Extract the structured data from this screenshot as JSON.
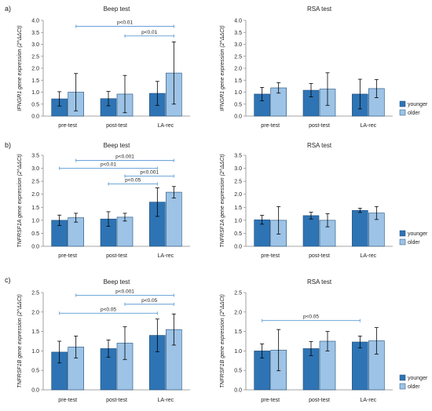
{
  "panel_labels": [
    "a)",
    "b)",
    "c)"
  ],
  "legend": {
    "younger": "younger",
    "older": "older"
  },
  "colors": {
    "younger": "#2e74b5",
    "older": "#9dc3e6",
    "annotation": "#5b9bd5",
    "error_bar": "#000000"
  },
  "chart_data": [
    {
      "type": "bar",
      "panel": "a)",
      "title": "Beep test",
      "ylabel": "IFNGR1 gene expression (2^ΔΔCt)",
      "ylim": [
        0,
        4
      ],
      "ticks": [
        "0.0",
        "0.5",
        "1.0",
        "1.5",
        "2.0",
        "2.5",
        "3.0",
        "3.5",
        "4.0"
      ],
      "categories": [
        "pre-test",
        "post-test",
        "LA-rec"
      ],
      "series": [
        {
          "name": "younger",
          "values": [
            0.72,
            0.73,
            0.95
          ],
          "errors": [
            0.3,
            0.3,
            0.5
          ]
        },
        {
          "name": "older",
          "values": [
            1.0,
            0.92,
            1.8
          ],
          "errors": [
            0.78,
            0.78,
            1.3
          ]
        }
      ],
      "annotations": [
        {
          "text": "p<0.01",
          "from": "pre-test.older",
          "to": "LA-rec.older",
          "y": 3.75
        },
        {
          "text": "p<0.01",
          "from": "post-test.older",
          "to": "LA-rec.older",
          "y": 3.35
        }
      ],
      "legend": false
    },
    {
      "type": "bar",
      "panel": "",
      "title": "RSA test",
      "ylabel": "IFNGR1 gene expression (2^ΔΔCt)",
      "ylim": [
        0,
        4
      ],
      "ticks": [
        "0.0",
        "0.5",
        "1.0",
        "1.5",
        "2.0",
        "2.5",
        "3.0",
        "3.5",
        "4.0"
      ],
      "categories": [
        "pre-test",
        "post-test",
        "LA-rec"
      ],
      "series": [
        {
          "name": "younger",
          "values": [
            0.92,
            1.08,
            0.92
          ],
          "errors": [
            0.28,
            0.28,
            0.62
          ]
        },
        {
          "name": "older",
          "values": [
            1.18,
            1.13,
            1.15
          ],
          "errors": [
            0.22,
            0.68,
            0.38
          ]
        }
      ],
      "annotations": [],
      "legend": true
    },
    {
      "type": "bar",
      "panel": "b)",
      "title": "Beep test",
      "ylabel": "TNFRSF1A gene expression (2^ΔΔCt)",
      "ylim": [
        0,
        3.5
      ],
      "ticks": [
        "0.0",
        "0.5",
        "1.0",
        "1.5",
        "2.0",
        "2.5",
        "3.0",
        "3.5"
      ],
      "categories": [
        "pre-test",
        "post-test",
        "LA-rec"
      ],
      "series": [
        {
          "name": "younger",
          "values": [
            1.0,
            1.05,
            1.7
          ],
          "errors": [
            0.2,
            0.28,
            0.55
          ]
        },
        {
          "name": "older",
          "values": [
            1.1,
            1.12,
            2.08
          ],
          "errors": [
            0.17,
            0.15,
            0.22
          ]
        }
      ],
      "annotations": [
        {
          "text": "p<0.001",
          "from": "pre-test.older",
          "to": "LA-rec.older",
          "y": 3.3
        },
        {
          "text": "p<0.01",
          "from": "pre-test.younger",
          "to": "LA-rec.younger",
          "y": 3.0
        },
        {
          "text": "p<0.001",
          "from": "post-test.older",
          "to": "LA-rec.older",
          "y": 2.7
        },
        {
          "text": "p<0.05",
          "from": "post-test.younger",
          "to": "LA-rec.younger",
          "y": 2.4
        }
      ],
      "legend": false
    },
    {
      "type": "bar",
      "panel": "",
      "title": "RSA test",
      "ylabel": "TNFRSF1A gene expression (2^ΔΔCt)",
      "ylim": [
        0,
        3.5
      ],
      "ticks": [
        "0.0",
        "0.5",
        "1.0",
        "1.5",
        "2.0",
        "2.5",
        "3.0",
        "3.5"
      ],
      "categories": [
        "pre-test",
        "post-test",
        "LA-rec"
      ],
      "series": [
        {
          "name": "younger",
          "values": [
            1.02,
            1.18,
            1.38
          ],
          "errors": [
            0.17,
            0.13,
            0.08
          ]
        },
        {
          "name": "older",
          "values": [
            1.0,
            1.0,
            1.28
          ],
          "errors": [
            0.53,
            0.25,
            0.25
          ]
        }
      ],
      "annotations": [],
      "legend": true
    },
    {
      "type": "bar",
      "panel": "c)",
      "title": "Beep test",
      "ylabel": "TNFRSF1B gene expression (2^ΔΔCt)",
      "ylim": [
        0,
        2.5
      ],
      "ticks": [
        "0.0",
        "0.5",
        "1.0",
        "1.5",
        "2.0",
        "2.5"
      ],
      "categories": [
        "pre-test",
        "post-test",
        "LA-rec"
      ],
      "series": [
        {
          "name": "younger",
          "values": [
            0.97,
            1.06,
            1.4
          ],
          "errors": [
            0.28,
            0.22,
            0.42
          ]
        },
        {
          "name": "older",
          "values": [
            1.1,
            1.2,
            1.55
          ],
          "errors": [
            0.28,
            0.42,
            0.4
          ]
        }
      ],
      "annotations": [
        {
          "text": "p<0.001",
          "from": "pre-test.older",
          "to": "LA-rec.older",
          "y": 2.43
        },
        {
          "text": "p<0.05",
          "from": "post-test.older",
          "to": "LA-rec.older",
          "y": 2.2
        },
        {
          "text": "p<0.05",
          "from": "pre-test.younger",
          "to": "LA-rec.younger",
          "y": 1.97
        }
      ],
      "legend": false
    },
    {
      "type": "bar",
      "panel": "",
      "title": "RSA test",
      "ylabel": "TNFRSF1B gene expression (2^ΔΔCt)",
      "ylim": [
        0,
        2.5
      ],
      "ticks": [
        "0.0",
        "0.5",
        "1.0",
        "1.5",
        "2.0",
        "2.5"
      ],
      "categories": [
        "pre-test",
        "post-test",
        "LA-rec"
      ],
      "series": [
        {
          "name": "younger",
          "values": [
            1.0,
            1.06,
            1.23
          ],
          "errors": [
            0.18,
            0.18,
            0.15
          ]
        },
        {
          "name": "older",
          "values": [
            1.02,
            1.25,
            1.26
          ],
          "errors": [
            0.53,
            0.25,
            0.34
          ]
        }
      ],
      "annotations": [
        {
          "text": "p<0.05",
          "from": "pre-test.younger",
          "to": "LA-rec.younger",
          "y": 1.78
        }
      ],
      "legend": true
    }
  ]
}
